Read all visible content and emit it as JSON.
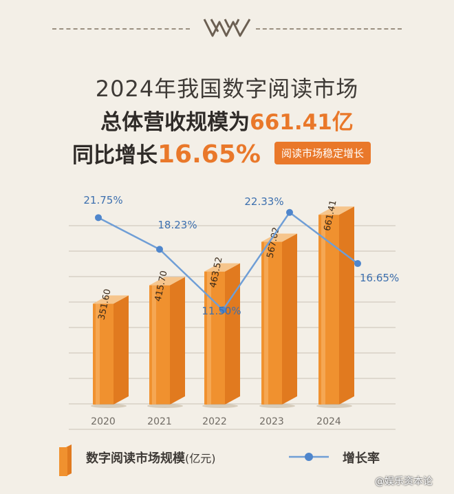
{
  "header": {
    "title_line1": "2024年我国数字阅读市场",
    "title_line2_prefix": "总体营收规模为",
    "title_line2_value": "661.41亿",
    "title_line3_prefix": "同比增长",
    "title_line3_value": "16.65%",
    "badge": "阅读市场稳定增长"
  },
  "legend": {
    "bars_label": "数字阅读市场规模",
    "bars_unit": "(亿元)",
    "line_label": "增长率"
  },
  "watermark": "@娱乐资本论",
  "colors": {
    "background": "#f3efe7",
    "accent": "#e9782a",
    "bar_front": "#f0912f",
    "line": "#6f9ed6",
    "line_marker": "#4f86cc"
  },
  "chart_data": {
    "type": "bar",
    "categories": [
      "2020",
      "2021",
      "2022",
      "2023",
      "2024"
    ],
    "series": [
      {
        "name": "数字阅读市场规模",
        "values": [
          351.6,
          415.7,
          463.52,
          567.02,
          661.41
        ],
        "labels": [
          "351.60",
          "415.70",
          "463.52",
          "567.02",
          "661.41"
        ]
      },
      {
        "name": "增长率",
        "type": "line",
        "values": [
          21.75,
          18.23,
          11.5,
          22.33,
          16.65
        ],
        "labels": [
          "21.75%",
          "18.23%",
          "11.50%",
          "22.33%",
          "16.65%"
        ]
      }
    ],
    "ylim": [
      0,
      700
    ],
    "grid": true
  }
}
